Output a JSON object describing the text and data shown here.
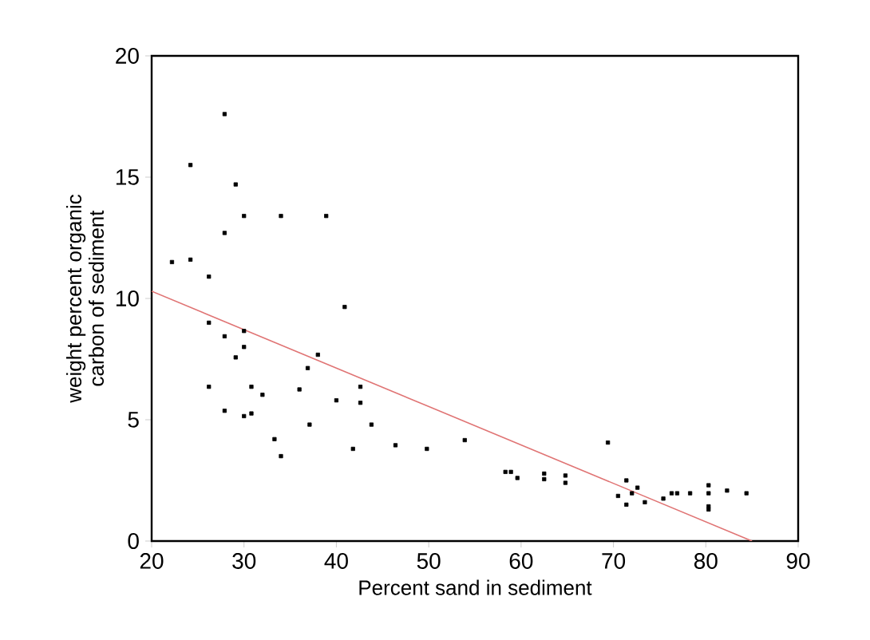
{
  "chart_data": {
    "type": "scatter",
    "xlabel": "Percent sand in sediment",
    "ylabel": "weight percent organic\ncarbon of sediment",
    "xlim": [
      20,
      90
    ],
    "ylim": [
      0,
      20
    ],
    "xticks": [
      20,
      30,
      40,
      50,
      60,
      70,
      80,
      90
    ],
    "yticks": [
      0,
      5,
      10,
      15,
      20
    ],
    "grid": false,
    "marker": "square",
    "series": [
      {
        "color": "#000000",
        "x": [
          22.2,
          24.2,
          24.2,
          27.9,
          29.1,
          30,
          34,
          38.9,
          27.9,
          26.2,
          40.9,
          26.2,
          27.9,
          30,
          30,
          29.1,
          38,
          36.9,
          26.2,
          30.8,
          32,
          36,
          42.6,
          40,
          42.6,
          27.9,
          30,
          30.8,
          37.1,
          43.8,
          33.3,
          34,
          41.8,
          46.4,
          49.8,
          53.9,
          58.3,
          58.9,
          59.6,
          62.5,
          62.5,
          64.8,
          64.8,
          69.4,
          71.4,
          70.5,
          72,
          72.6,
          71.4,
          73.4,
          75.4,
          76.3,
          76.9,
          78.3,
          80.3,
          80.3,
          80.3,
          80.3,
          82.3,
          84.4
        ],
        "values": [
          11.5,
          15.5,
          11.6,
          17.6,
          14.7,
          13.4,
          13.4,
          13.4,
          12.7,
          10.9,
          9.65,
          9.0,
          8.44,
          8.66,
          8.0,
          7.57,
          7.68,
          7.13,
          6.36,
          6.36,
          6.03,
          6.25,
          6.36,
          5.8,
          5.7,
          5.37,
          5.15,
          5.26,
          4.8,
          4.8,
          4.2,
          3.5,
          3.8,
          3.95,
          3.8,
          4.16,
          2.85,
          2.85,
          2.6,
          2.78,
          2.55,
          2.7,
          2.4,
          4.06,
          2.5,
          1.86,
          1.97,
          2.2,
          1.5,
          1.6,
          1.75,
          1.97,
          1.97,
          1.97,
          2.3,
          1.97,
          1.43,
          1.3,
          2.08,
          1.97
        ]
      },
      {
        "type": "line",
        "color": "#e07474",
        "marker": "none",
        "x": [
          20,
          85
        ],
        "values": [
          10.3,
          0
        ]
      }
    ]
  }
}
